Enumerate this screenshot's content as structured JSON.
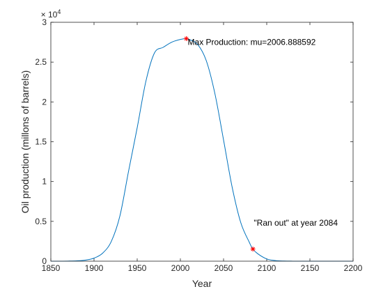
{
  "chart_data": {
    "type": "line",
    "title": "",
    "xlabel": "Year",
    "ylabel": "Oil production (millons of barrels)",
    "xlim": [
      1850,
      2200
    ],
    "ylim": [
      0,
      30000
    ],
    "x_ticks": [
      1850,
      1900,
      1950,
      2000,
      2050,
      2100,
      2150,
      2200
    ],
    "y_ticks": [
      0,
      5000,
      10000,
      15000,
      20000,
      25000,
      30000
    ],
    "y_tick_labels": [
      "0",
      "0.5",
      "1",
      "1.5",
      "2",
      "2.5",
      "3"
    ],
    "y_exponent": "× 10^4",
    "grid": false,
    "legend": null,
    "line_color": "#0072BD",
    "marker_color": "#FF0000",
    "series": [
      {
        "x": [
          1850,
          1860,
          1870,
          1880,
          1890,
          1900,
          1910,
          1920,
          1930,
          1940,
          1950,
          1960,
          1970,
          1980,
          1990,
          2000,
          2006.888592,
          2010,
          2020,
          2030,
          2040,
          2050,
          2060,
          2070,
          2080,
          2084,
          2090,
          2100,
          2110,
          2120,
          2130,
          2140,
          2150,
          2160,
          2170,
          2180,
          2190,
          2200
        ],
        "y": [
          1,
          4,
          14,
          45,
          136,
          383,
          1009,
          2480,
          5695,
          11300,
          16760,
          22560,
          26150,
          26850,
          27500,
          27850,
          27950,
          27850,
          27220,
          25180,
          21030,
          15220,
          9270,
          4820,
          2330,
          1520,
          900,
          280,
          80,
          20,
          5,
          1,
          0,
          0,
          0,
          0,
          0,
          0
        ]
      }
    ],
    "markers": [
      {
        "x": 2006.888592,
        "y": 27950,
        "symbol": "*"
      },
      {
        "x": 2084,
        "y": 1520,
        "symbol": "*"
      }
    ],
    "annotations": [
      {
        "text": "Max Production: mu=2006.888592",
        "x": 2008.5,
        "y": 27500
      },
      {
        "text": "\"Ran out\" at year 2084",
        "x": 2085,
        "y": 4800
      }
    ]
  }
}
